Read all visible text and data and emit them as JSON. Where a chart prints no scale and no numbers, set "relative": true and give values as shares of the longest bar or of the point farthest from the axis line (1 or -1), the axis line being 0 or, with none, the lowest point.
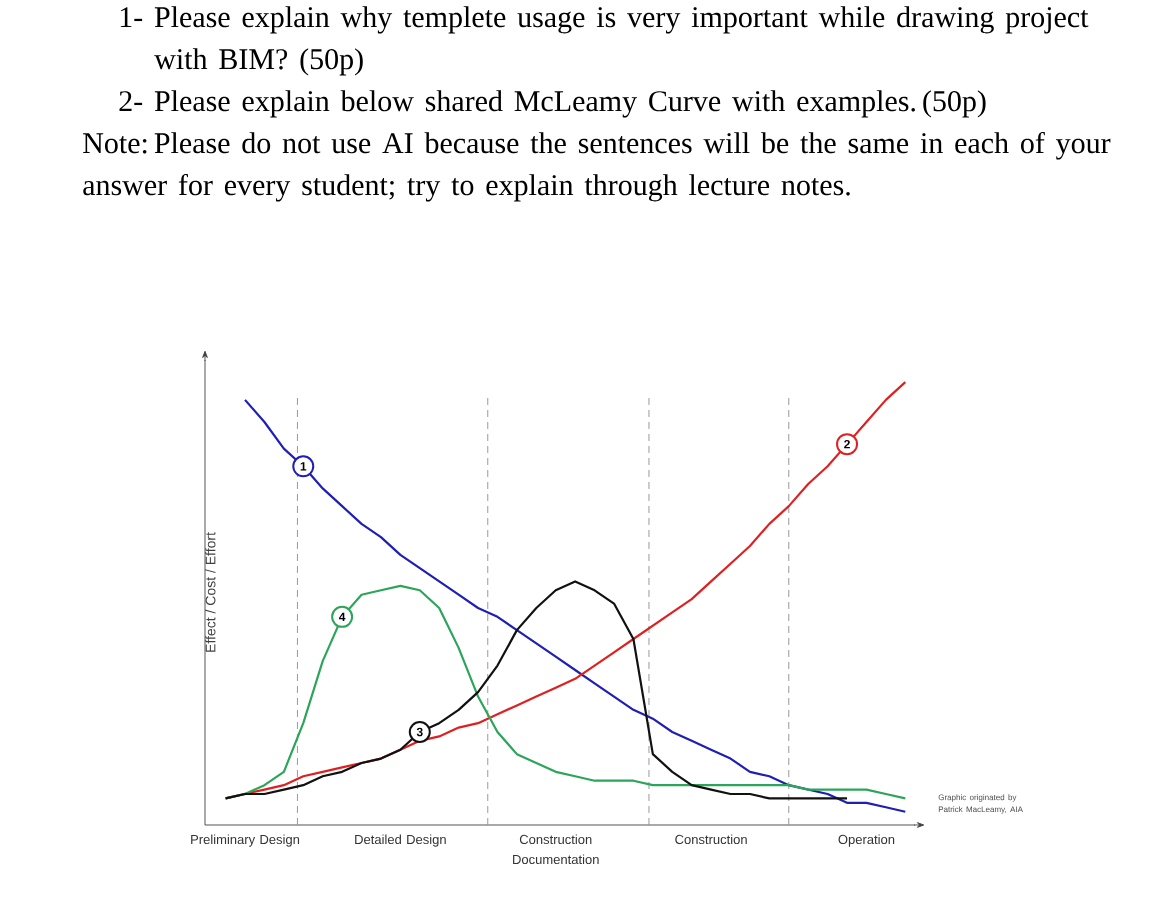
{
  "chart_data": {
    "type": "line",
    "relative": true,
    "ylabel": "Effect / Cost / Effort",
    "categories": [
      null,
      "Preliminary Design",
      null,
      null,
      null,
      null,
      null,
      null,
      null,
      "Detailed Design",
      null,
      null,
      null,
      null,
      null,
      null,
      null,
      "Construction Documentation",
      null,
      null,
      null,
      null,
      null,
      null,
      null,
      "Construction",
      null,
      null,
      null,
      null,
      null,
      null,
      null,
      "Operation",
      null,
      null
    ],
    "series": [
      {
        "name": "1",
        "color": "#1f1fb4",
        "values": [
          null,
          0.96,
          0.91,
          0.85,
          0.81,
          0.76,
          0.72,
          0.68,
          0.65,
          0.61,
          0.58,
          0.55,
          0.52,
          0.49,
          0.47,
          0.44,
          0.41,
          0.38,
          0.35,
          0.32,
          0.29,
          0.26,
          0.24,
          0.21,
          0.19,
          0.17,
          0.15,
          0.12,
          0.11,
          0.09,
          0.08,
          0.07,
          0.05,
          0.05,
          0.04,
          0.03
        ]
      },
      {
        "name": "2",
        "color": "#e02020",
        "values": [
          0.06,
          0.07,
          0.08,
          0.09,
          0.11,
          0.12,
          0.13,
          0.14,
          0.15,
          0.17,
          0.19,
          0.2,
          0.22,
          0.23,
          0.25,
          0.27,
          0.29,
          0.31,
          0.33,
          0.36,
          0.39,
          0.42,
          0.45,
          0.48,
          0.51,
          0.55,
          0.59,
          0.63,
          0.68,
          0.72,
          0.77,
          0.81,
          0.86,
          0.91,
          0.96,
          1
        ]
      },
      {
        "name": "4",
        "color": "#2ca55a",
        "values": [
          0.06,
          0.07,
          0.09,
          0.12,
          0.23,
          0.37,
          0.47,
          0.52,
          0.53,
          0.54,
          0.53,
          0.49,
          0.4,
          0.29,
          0.21,
          0.16,
          0.14,
          0.12,
          0.11,
          0.1,
          0.1,
          0.1,
          0.09,
          0.09,
          0.09,
          0.09,
          0.09,
          0.09,
          0.09,
          0.09,
          0.08,
          0.08,
          0.08,
          0.08,
          0.07,
          0.06
        ]
      },
      {
        "name": "3",
        "color": "#111111",
        "values": [
          0.06,
          0.07,
          0.07,
          0.08,
          0.09,
          0.11,
          0.12,
          0.14,
          0.15,
          0.17,
          0.21,
          0.23,
          0.26,
          0.3,
          0.36,
          0.44,
          0.49,
          0.53,
          0.55,
          0.53,
          0.5,
          0.42,
          0.16,
          0.12,
          0.09,
          0.08,
          0.07,
          0.07,
          0.06,
          0.06,
          0.06,
          0.06,
          0.06,
          null,
          null,
          null
        ]
      }
    ],
    "annotations": [
      "1- Please explain why templete usage is very important while drawing project with BIM? (50p)",
      "2- Please explain below shared McLeamy Curve with examples. (50p)",
      "Note: Please do not use AI because the sentences will be the same in each of your answer for every student; try to explain through lecture notes.",
      "Graphic originated by Patrick MacLeamy, AIA"
    ]
  }
}
